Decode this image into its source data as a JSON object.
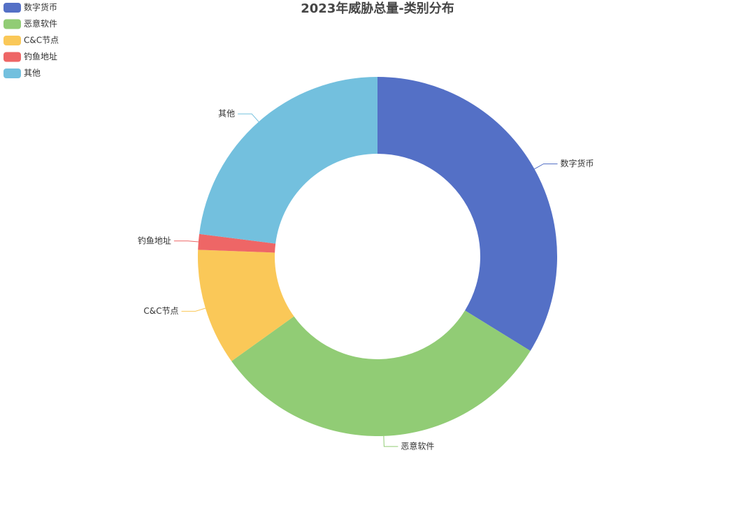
{
  "chart_data": {
    "type": "pie",
    "title": "2023年威胁总量-类别分布",
    "categories": [
      "数字货币",
      "恶意软件",
      "C&C节点",
      "钓鱼地址",
      "其他"
    ],
    "values": [
      33.8,
      31.3,
      10.5,
      1.4,
      23.0
    ],
    "colors": [
      "#5470c6",
      "#91cc75",
      "#fac858",
      "#ee6666",
      "#73c0de"
    ],
    "donut": true,
    "legend": "top-left"
  }
}
